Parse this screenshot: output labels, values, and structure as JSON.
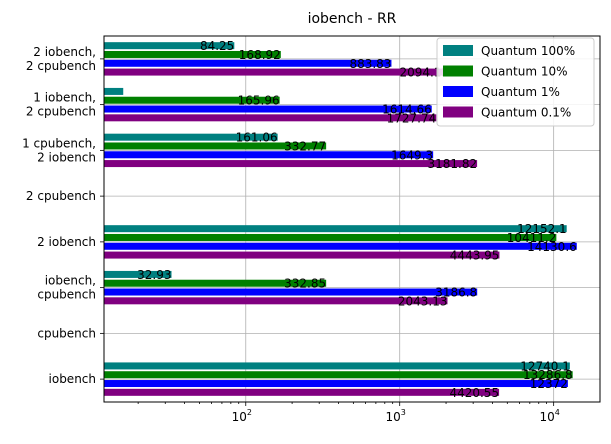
{
  "chart_data": {
    "type": "bar",
    "orientation": "horizontal",
    "title": "iobench - RR",
    "xlabel": "",
    "ylabel": "",
    "xscale": "log",
    "xlim": [
      12,
      20000
    ],
    "xticks": [
      {
        "value": 100,
        "base": "10",
        "exp": "2"
      },
      {
        "value": 1000,
        "base": "10",
        "exp": "3"
      },
      {
        "value": 10000,
        "base": "10",
        "exp": "4"
      }
    ],
    "grid": true,
    "legend_position": "top-right",
    "categories": [
      [
        "2 iobench,",
        "2 cpubench"
      ],
      [
        "1 iobench,",
        "2 cpubench"
      ],
      [
        "1 cpubench,",
        "2 iobench"
      ],
      [
        "2 cpubench"
      ],
      [
        "2 iobench"
      ],
      [
        "iobench,",
        "cpubench"
      ],
      [
        "cpubench"
      ],
      [
        "iobench"
      ]
    ],
    "series": [
      {
        "name": "Quantum 100%",
        "color": "#008080",
        "values": [
          84.25,
          16,
          161.06,
          null,
          12152.1,
          32.93,
          null,
          12740.1
        ],
        "labels": [
          "84.25",
          "",
          "161.06",
          "",
          "12152.1",
          "32.93",
          "",
          "12740.1"
        ]
      },
      {
        "name": "Quantum 10%",
        "color": "#008000",
        "values": [
          168.92,
          165.96,
          332.77,
          null,
          10411.2,
          332.85,
          null,
          13286.8
        ],
        "labels": [
          "168.92",
          "165.96",
          "332.77",
          "",
          "10411.2",
          "332.85",
          "",
          "13286.8"
        ]
      },
      {
        "name": "Quantum 1%",
        "color": "#0000ff",
        "values": [
          883.83,
          1614.66,
          1649.3,
          null,
          14130.6,
          3186.8,
          null,
          12372
        ],
        "labels": [
          "883.83",
          "1614.66",
          "1649.3",
          "",
          "14130.6",
          "3186.8",
          "",
          "12372"
        ]
      },
      {
        "name": "Quantum 0.1%",
        "color": "#800080",
        "values": [
          2094.13,
          1727.74,
          3181.82,
          null,
          4443.95,
          2043.13,
          null,
          4420.55
        ],
        "labels": [
          "2094.13",
          "1727.74",
          "3181.82",
          "",
          "4443.95",
          "2043.13",
          "",
          "4420.55"
        ]
      }
    ]
  }
}
